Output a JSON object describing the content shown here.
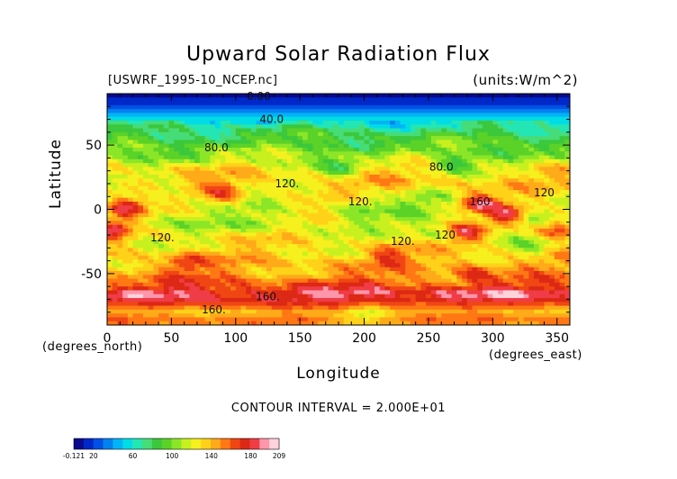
{
  "chart_data": {
    "type": "heatmap",
    "title": "Upward Solar Radiation Flux",
    "subtitle_left": "[USWRF_1995-10_NCEP.nc]",
    "subtitle_right": "(units:W/m^2)",
    "xlabel": "Longitude",
    "ylabel": "Latitude",
    "x_units": "(degrees_north)",
    "x_units_right": "(degrees_east)",
    "xlim": [
      0,
      360
    ],
    "ylim": [
      -90,
      90
    ],
    "x_ticks": [
      0,
      50,
      100,
      150,
      200,
      250,
      300,
      350
    ],
    "y_ticks": [
      -50,
      0,
      50
    ],
    "x_tick_labels": [
      "0",
      "50",
      "100",
      "150",
      "200",
      "250",
      "300",
      "350"
    ],
    "y_tick_labels": [
      "-50",
      "0",
      "50"
    ],
    "contour_interval_text": "CONTOUR INTERVAL = 2.000E+01",
    "contour_labels": [
      {
        "text": "0.00",
        "x": 118,
        "y": 88
      },
      {
        "text": "40.0",
        "x": 128,
        "y": 70
      },
      {
        "text": "80.0",
        "x": 85,
        "y": 48
      },
      {
        "text": "80.0",
        "x": 260,
        "y": 33
      },
      {
        "text": "120.",
        "x": 140,
        "y": 20
      },
      {
        "text": "120.",
        "x": 197,
        "y": 6
      },
      {
        "text": "120",
        "x": 340,
        "y": 13
      },
      {
        "text": "160",
        "x": 290,
        "y": 6
      },
      {
        "text": "120.",
        "x": 43,
        "y": -22
      },
      {
        "text": "120.",
        "x": 230,
        "y": -25
      },
      {
        "text": "120",
        "x": 263,
        "y": -20
      },
      {
        "text": "160.",
        "x": 125,
        "y": -68
      },
      {
        "text": "160.",
        "x": 83,
        "y": -78
      }
    ],
    "lat_profile": [
      {
        "lat": 90,
        "value": 5
      },
      {
        "lat": 80,
        "value": 20
      },
      {
        "lat": 70,
        "value": 55
      },
      {
        "lat": 60,
        "value": 80
      },
      {
        "lat": 50,
        "value": 95
      },
      {
        "lat": 40,
        "value": 110
      },
      {
        "lat": 30,
        "value": 130
      },
      {
        "lat": 20,
        "value": 135
      },
      {
        "lat": 10,
        "value": 125
      },
      {
        "lat": 0,
        "value": 120
      },
      {
        "lat": -10,
        "value": 115
      },
      {
        "lat": -20,
        "value": 125
      },
      {
        "lat": -30,
        "value": 130
      },
      {
        "lat": -40,
        "value": 140
      },
      {
        "lat": -50,
        "value": 145
      },
      {
        "lat": -60,
        "value": 165
      },
      {
        "lat": -65,
        "value": 185
      },
      {
        "lat": -70,
        "value": 180
      },
      {
        "lat": -75,
        "value": 160
      },
      {
        "lat": -80,
        "value": 140
      },
      {
        "lat": -85,
        "value": 155
      },
      {
        "lat": -90,
        "value": 150
      }
    ],
    "hotspots": [
      {
        "lon": 15,
        "lat": 2,
        "value": 175
      },
      {
        "lon": 90,
        "lat": 12,
        "value": 165
      },
      {
        "lon": 290,
        "lat": 5,
        "value": 180
      },
      {
        "lon": 310,
        "lat": -5,
        "value": 175
      },
      {
        "lon": 5,
        "lat": -15,
        "value": 175
      },
      {
        "lon": 60,
        "lat": -42,
        "value": 170
      },
      {
        "lon": 285,
        "lat": -50,
        "value": 175
      },
      {
        "lon": 350,
        "lat": -15,
        "value": 175
      },
      {
        "lon": 220,
        "lat": -35,
        "value": 165
      },
      {
        "lon": 280,
        "lat": -18,
        "value": 170
      }
    ],
    "coldspots": [
      {
        "lon": 200,
        "lat": 2,
        "value": 100
      },
      {
        "lon": 240,
        "lat": 5,
        "value": 105
      },
      {
        "lon": 120,
        "lat": -10,
        "value": 100
      },
      {
        "lon": 45,
        "lat": 15,
        "value": 105
      },
      {
        "lon": 270,
        "lat": 35,
        "value": 85
      },
      {
        "lon": 180,
        "lat": 30,
        "value": 100
      },
      {
        "lon": 200,
        "lat": -82,
        "value": 120
      },
      {
        "lon": 330,
        "lat": -30,
        "value": 110
      },
      {
        "lon": 250,
        "lat": -20,
        "value": 110
      }
    ],
    "colorbar": {
      "min": -0.121,
      "max": 209,
      "tick_labels": [
        "-0.121",
        "20",
        "60",
        "100",
        "140",
        "180",
        "209"
      ],
      "tick_values": [
        -0.121,
        20,
        60,
        100,
        140,
        180,
        209
      ],
      "colors": [
        "#0a0a8c",
        "#0028c8",
        "#0050e6",
        "#0082f0",
        "#00b4f5",
        "#00dce6",
        "#23e6b4",
        "#46dc78",
        "#3cc83c",
        "#5ad228",
        "#8ce628",
        "#c8f01e",
        "#f5f01e",
        "#ffd219",
        "#ffaa19",
        "#ff7814",
        "#f04614",
        "#dc2814",
        "#f03c46",
        "#ff96aa",
        "#ffd2dc"
      ]
    }
  }
}
